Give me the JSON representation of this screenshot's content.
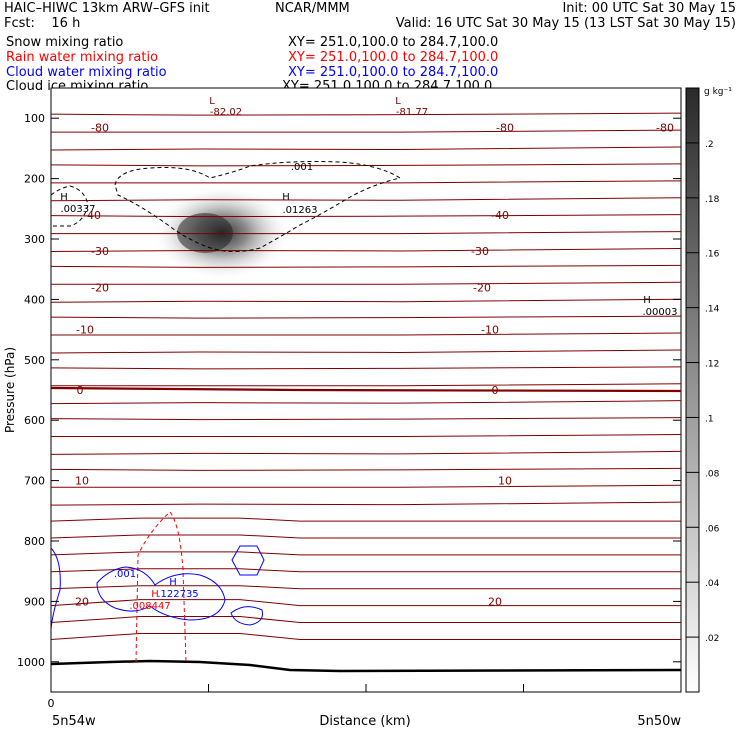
{
  "header": {
    "left_title": "HAIC–HIWC 13km ARW–GFS init",
    "center_title": "NCAR/MMM",
    "init": "Init: 00 UTC Sat 30 May 15",
    "fcst": "Fcst:    16 h",
    "valid": "Valid: 16 UTC Sat 30 May 15 (13 LST Sat 30 May 15)"
  },
  "fields": [
    {
      "name": "Snow mixing ratio",
      "xy": "XY= 251.0,100.0 to 284.7,100.0",
      "color": "#000000"
    },
    {
      "name": "Rain water mixing ratio",
      "xy": "XY= 251.0,100.0 to 284.7,100.0",
      "color": "#ff0000"
    },
    {
      "name": "Cloud water mixing ratio",
      "xy": "XY= 251.0,100.0 to 284.7,100.0",
      "color": "#0000ff"
    },
    {
      "name": "Cloud ice mixing ratio",
      "xy": "XY= 251.0,100.0 to 284.7,100.0",
      "color": "#000000"
    }
  ],
  "chart_data": {
    "type": "cross-section",
    "xlabel": "Distance (km)",
    "ylabel": "Pressure (hPa)",
    "x_ticks": [
      "0",
      "",
      "",
      "",
      ""
    ],
    "x_endpoints": [
      "5n54w",
      "5n50w"
    ],
    "y_ticks": [
      100,
      200,
      300,
      400,
      500,
      600,
      700,
      800,
      900,
      1000
    ],
    "ylim": [
      1050,
      50
    ],
    "y_scale": "linear",
    "colorbar": {
      "unit": "g kg⁻¹",
      "tick_labels": [
        ".2",
        ".18",
        ".16",
        ".14",
        ".12",
        ".1",
        ".08",
        ".06",
        ".04",
        ".02"
      ],
      "range": [
        0,
        0.22
      ]
    },
    "temperature_contour_labels": [
      "-80",
      "-80",
      "-80",
      "-40",
      "-40",
      "-30",
      "-30",
      "-20",
      "-20",
      "-10",
      "-10",
      "0",
      "0",
      "10",
      "10",
      "20",
      "20"
    ],
    "temperature_levels": [
      {
        "value": -80,
        "hPa": 115
      },
      {
        "value": -40,
        "hPa": 260
      },
      {
        "value": -30,
        "hPa": 320
      },
      {
        "value": -20,
        "hPa": 380
      },
      {
        "value": -10,
        "hPa": 450
      },
      {
        "value": 0,
        "hPa": 550
      },
      {
        "value": 10,
        "hPa": 700
      },
      {
        "value": 20,
        "hPa": 900
      }
    ],
    "extrema": [
      {
        "type": "L",
        "value": "-82.02",
        "color": "#800000"
      },
      {
        "type": "L",
        "value": "-81.77",
        "color": "#800000"
      },
      {
        "type": "H",
        "value": ".00337",
        "color": "#000000"
      },
      {
        "type": "H",
        "value": ".01263",
        "color": "#000000"
      },
      {
        "type": "H",
        "value": ".00003",
        "color": "#000000"
      },
      {
        "type": "H",
        "value": ".122735",
        "color": "#0000ff"
      },
      {
        "type": "H",
        "value": ".008447",
        "color": "#ff0000"
      }
    ],
    "contour_labels": [
      {
        "text": ".001",
        "color": "#000000"
      },
      {
        "text": ".001",
        "color": "#0000ff"
      }
    ]
  }
}
